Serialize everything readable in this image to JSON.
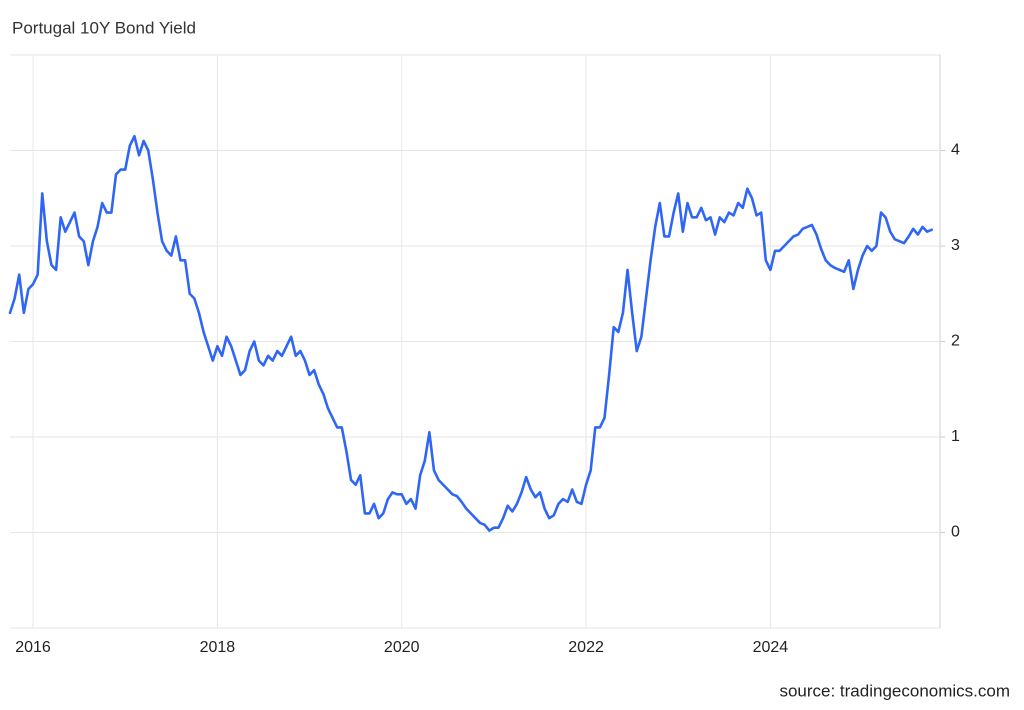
{
  "chart_data": {
    "type": "line",
    "title": "Portugal 10Y Bond Yield",
    "source": "source: tradingeconomics.com",
    "color": "#2f66f5",
    "grid": true,
    "xlim": [
      2015.75,
      2025.84
    ],
    "xticks": [
      2016,
      2018,
      2020,
      2022,
      2024
    ],
    "ylim": [
      -1,
      5
    ],
    "yticks": [
      0,
      1,
      2,
      3,
      4
    ],
    "x": [
      2015.75,
      2015.8,
      2015.85,
      2015.9,
      2015.95,
      2016,
      2016.05,
      2016.1,
      2016.15,
      2016.2,
      2016.25,
      2016.3,
      2016.35,
      2016.4,
      2016.45,
      2016.5,
      2016.55,
      2016.6,
      2016.65,
      2016.7,
      2016.75,
      2016.8,
      2016.85,
      2016.9,
      2016.95,
      2017,
      2017.05,
      2017.1,
      2017.15,
      2017.2,
      2017.25,
      2017.3,
      2017.35,
      2017.4,
      2017.45,
      2017.5,
      2017.55,
      2017.6,
      2017.65,
      2017.7,
      2017.75,
      2017.8,
      2017.85,
      2017.9,
      2017.95,
      2018,
      2018.05,
      2018.1,
      2018.15,
      2018.2,
      2018.25,
      2018.3,
      2018.35,
      2018.4,
      2018.45,
      2018.5,
      2018.55,
      2018.6,
      2018.65,
      2018.7,
      2018.75,
      2018.8,
      2018.85,
      2018.9,
      2018.95,
      2019,
      2019.05,
      2019.1,
      2019.15,
      2019.2,
      2019.25,
      2019.3,
      2019.35,
      2019.4,
      2019.45,
      2019.5,
      2019.55,
      2019.6,
      2019.65,
      2019.7,
      2019.75,
      2019.8,
      2019.85,
      2019.9,
      2019.95,
      2020,
      2020.05,
      2020.1,
      2020.15,
      2020.2,
      2020.25,
      2020.3,
      2020.35,
      2020.4,
      2020.45,
      2020.5,
      2020.55,
      2020.6,
      2020.65,
      2020.7,
      2020.75,
      2020.8,
      2020.85,
      2020.9,
      2020.95,
      2021,
      2021.05,
      2021.1,
      2021.15,
      2021.2,
      2021.25,
      2021.3,
      2021.35,
      2021.4,
      2021.45,
      2021.5,
      2021.55,
      2021.6,
      2021.65,
      2021.7,
      2021.75,
      2021.8,
      2021.85,
      2021.9,
      2021.95,
      2022,
      2022.05,
      2022.1,
      2022.15,
      2022.2,
      2022.25,
      2022.3,
      2022.35,
      2022.4,
      2022.45,
      2022.5,
      2022.55,
      2022.6,
      2022.65,
      2022.7,
      2022.75,
      2022.8,
      2022.85,
      2022.9,
      2022.95,
      2023,
      2023.05,
      2023.1,
      2023.15,
      2023.2,
      2023.25,
      2023.3,
      2023.35,
      2023.4,
      2023.45,
      2023.5,
      2023.55,
      2023.6,
      2023.65,
      2023.7,
      2023.75,
      2023.8,
      2023.85,
      2023.9,
      2023.95,
      2024,
      2024.05,
      2024.1,
      2024.15,
      2024.2,
      2024.25,
      2024.3,
      2024.35,
      2024.4,
      2024.45,
      2024.5,
      2024.55,
      2024.6,
      2024.65,
      2024.7,
      2024.75,
      2024.8,
      2024.85,
      2024.9,
      2024.95,
      2025,
      2025.05,
      2025.1,
      2025.15,
      2025.2,
      2025.25,
      2025.3,
      2025.35,
      2025.4,
      2025.45,
      2025.5,
      2025.55,
      2025.6,
      2025.65,
      2025.7,
      2025.75
    ],
    "values": [
      2.3,
      2.45,
      2.7,
      2.3,
      2.55,
      2.6,
      2.7,
      3.55,
      3.05,
      2.8,
      2.75,
      3.3,
      3.15,
      3.25,
      3.35,
      3.1,
      3.05,
      2.8,
      3.05,
      3.2,
      3.45,
      3.35,
      3.35,
      3.75,
      3.8,
      3.8,
      4.05,
      4.15,
      3.95,
      4.1,
      4.0,
      3.7,
      3.35,
      3.05,
      2.95,
      2.9,
      3.1,
      2.85,
      2.85,
      2.5,
      2.45,
      2.3,
      2.1,
      1.95,
      1.8,
      1.95,
      1.85,
      2.05,
      1.95,
      1.8,
      1.65,
      1.7,
      1.9,
      2.0,
      1.8,
      1.75,
      1.85,
      1.8,
      1.9,
      1.85,
      1.95,
      2.05,
      1.85,
      1.9,
      1.8,
      1.65,
      1.7,
      1.55,
      1.45,
      1.3,
      1.2,
      1.1,
      1.1,
      0.85,
      0.55,
      0.5,
      0.6,
      0.2,
      0.2,
      0.3,
      0.15,
      0.2,
      0.35,
      0.42,
      0.4,
      0.4,
      0.3,
      0.35,
      0.25,
      0.6,
      0.75,
      1.05,
      0.65,
      0.55,
      0.5,
      0.45,
      0.4,
      0.38,
      0.32,
      0.25,
      0.2,
      0.15,
      0.1,
      0.08,
      0.02,
      0.05,
      0.05,
      0.15,
      0.28,
      0.22,
      0.3,
      0.42,
      0.58,
      0.45,
      0.37,
      0.42,
      0.25,
      0.15,
      0.18,
      0.3,
      0.35,
      0.32,
      0.45,
      0.32,
      0.3,
      0.5,
      0.65,
      1.1,
      1.1,
      1.2,
      1.65,
      2.15,
      2.1,
      2.3,
      2.75,
      2.3,
      1.9,
      2.05,
      2.45,
      2.85,
      3.2,
      3.45,
      3.1,
      3.1,
      3.35,
      3.55,
      3.15,
      3.45,
      3.3,
      3.3,
      3.4,
      3.27,
      3.3,
      3.12,
      3.3,
      3.25,
      3.35,
      3.32,
      3.45,
      3.4,
      3.6,
      3.5,
      3.32,
      3.35,
      2.85,
      2.75,
      2.95,
      2.95,
      3.0,
      3.05,
      3.1,
      3.12,
      3.18,
      3.2,
      3.22,
      3.12,
      2.97,
      2.85,
      2.8,
      2.77,
      2.75,
      2.73,
      2.85,
      2.55,
      2.75,
      2.9,
      3.0,
      2.95,
      3.0,
      3.35,
      3.3,
      3.15,
      3.07,
      3.05,
      3.03,
      3.1,
      3.18,
      3.12,
      3.2,
      3.15,
      3.17
    ]
  }
}
